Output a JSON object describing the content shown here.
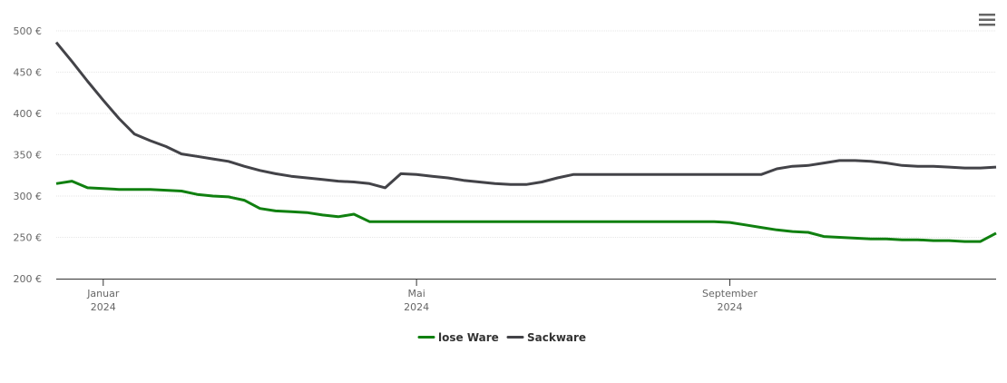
{
  "chart_data": {
    "type": "line",
    "categories": [
      null,
      null,
      null,
      "Januar 2024",
      null,
      null,
      null,
      null,
      null,
      null,
      null,
      null,
      null,
      null,
      null,
      null,
      null,
      null,
      null,
      null,
      null,
      null,
      null,
      "Mai 2024",
      null,
      null,
      null,
      null,
      null,
      null,
      null,
      null,
      null,
      null,
      null,
      null,
      null,
      null,
      null,
      null,
      null,
      null,
      null,
      "September 2024",
      null,
      null,
      null,
      null,
      null,
      null,
      null,
      null,
      null,
      null,
      null,
      null,
      null,
      null,
      null,
      null,
      null
    ],
    "series": [
      {
        "name": "lose Ware",
        "color": "#108010",
        "values": [
          315,
          318,
          310,
          309,
          308,
          308,
          308,
          307,
          306,
          302,
          300,
          299,
          295,
          285,
          282,
          281,
          280,
          277,
          275,
          278,
          269,
          269,
          269,
          269,
          269,
          269,
          269,
          269,
          269,
          269,
          269,
          269,
          269,
          269,
          269,
          269,
          269,
          269,
          269,
          269,
          269,
          269,
          269,
          268,
          265,
          262,
          259,
          257,
          256,
          251,
          250,
          249,
          248,
          248,
          247,
          247,
          246,
          246,
          245,
          245,
          255
        ]
      },
      {
        "name": "Sackware",
        "color": "#434348",
        "values": [
          486,
          463,
          439,
          416,
          394,
          375,
          367,
          360,
          351,
          348,
          345,
          342,
          336,
          331,
          327,
          324,
          322,
          320,
          318,
          317,
          315,
          310,
          327,
          326,
          324,
          322,
          319,
          317,
          315,
          314,
          314,
          317,
          322,
          326,
          326,
          326,
          326,
          326,
          326,
          326,
          326,
          326,
          326,
          326,
          326,
          326,
          333,
          336,
          337,
          340,
          343,
          343,
          342,
          340,
          337,
          336,
          336,
          335,
          334,
          334,
          335
        ]
      }
    ],
    "ylim": [
      200,
      500
    ],
    "yticks": [
      {
        "value": 200,
        "label": "200 €"
      },
      {
        "value": 250,
        "label": "250 €"
      },
      {
        "value": 300,
        "label": "300 €"
      },
      {
        "value": 350,
        "label": "350 €"
      },
      {
        "value": 400,
        "label": "400 €"
      },
      {
        "value": 450,
        "label": "450 €"
      },
      {
        "value": 500,
        "label": "500 €"
      }
    ],
    "grid": true
  }
}
